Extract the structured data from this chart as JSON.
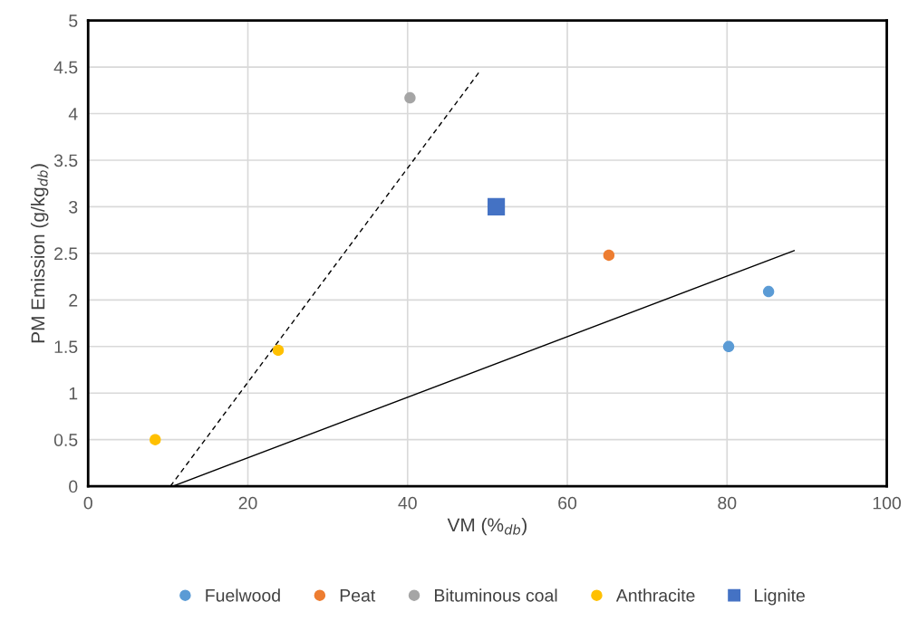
{
  "chart_data": {
    "type": "scatter",
    "xlabel": "VM (%$_{db}$)",
    "ylabel": "PM Emission (g/kg$_{db}$)",
    "xlim": [
      0,
      100
    ],
    "xticks": [
      0,
      20,
      40,
      60,
      80,
      100
    ],
    "ylim": [
      0,
      5
    ],
    "yticks": [
      0,
      0.5,
      1,
      1.5,
      2,
      2.5,
      3,
      3.5,
      4,
      4.5,
      5
    ],
    "grid": true,
    "legend": "bottom",
    "marker": "circle",
    "series": [
      {
        "name": "Fuelwood",
        "color": "#5b9bd5",
        "x": [
          80.2,
          85.2
        ],
        "values": [
          1.5,
          2.09
        ]
      },
      {
        "name": "Peat",
        "color": "#ed7d31",
        "x": [
          65.2
        ],
        "values": [
          2.48
        ]
      },
      {
        "name": "Bituminous coal",
        "color": "#a5a5a5",
        "x": [
          40.3
        ],
        "values": [
          4.17
        ]
      },
      {
        "name": "Anthracite",
        "color": "#ffc000",
        "x": [
          8.4,
          23.8
        ],
        "values": [
          0.5,
          1.46
        ]
      },
      {
        "name": "Lignite",
        "color": "#4472c4",
        "marker": "square",
        "x": [
          51.1
        ],
        "values": [
          3.0
        ]
      },
      {
        "type": "line",
        "color": "#000000",
        "marker": "none",
        "line_style": "dashed",
        "x": [
          10.3,
          49.0
        ],
        "values": [
          0,
          4.45
        ]
      },
      {
        "type": "line",
        "color": "#000000",
        "marker": "none",
        "line_style": "solid",
        "x": [
          10.6,
          88.4
        ],
        "values": [
          0,
          2.53
        ]
      }
    ]
  }
}
